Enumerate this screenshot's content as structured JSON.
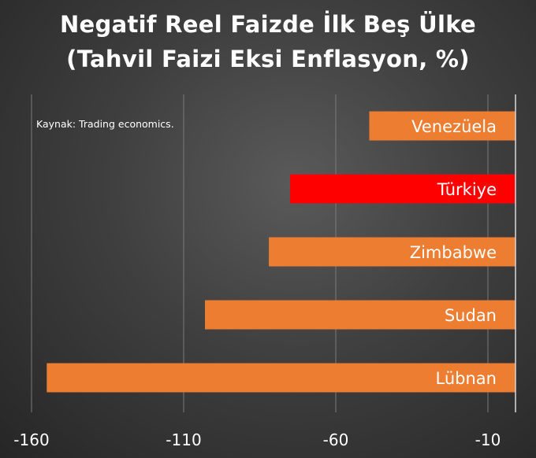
{
  "chart_data": {
    "type": "bar",
    "orientation": "horizontal",
    "title": "Negatif Reel Faizde İlk Beş Ülke",
    "subtitle": "(Tahvil Faizi Eksi Enflasyon, %)",
    "source_note": "Kaynak: Trading economics.",
    "categories": [
      "Venezüela",
      "Türkiye",
      "Zimbabwe",
      "Sudan",
      "Lübnan"
    ],
    "values": [
      -49,
      -75,
      -82,
      -103,
      -155
    ],
    "bar_colors": [
      "#ED7D31",
      "#FF0000",
      "#ED7D31",
      "#ED7D31",
      "#ED7D31"
    ],
    "x_ticks": [
      "-160",
      "-110",
      "-60",
      "-10"
    ],
    "x_tick_values": [
      -160,
      -110,
      -60,
      -10
    ],
    "xlim": [
      -160,
      -0.5
    ],
    "grid": true,
    "legend": "none"
  }
}
